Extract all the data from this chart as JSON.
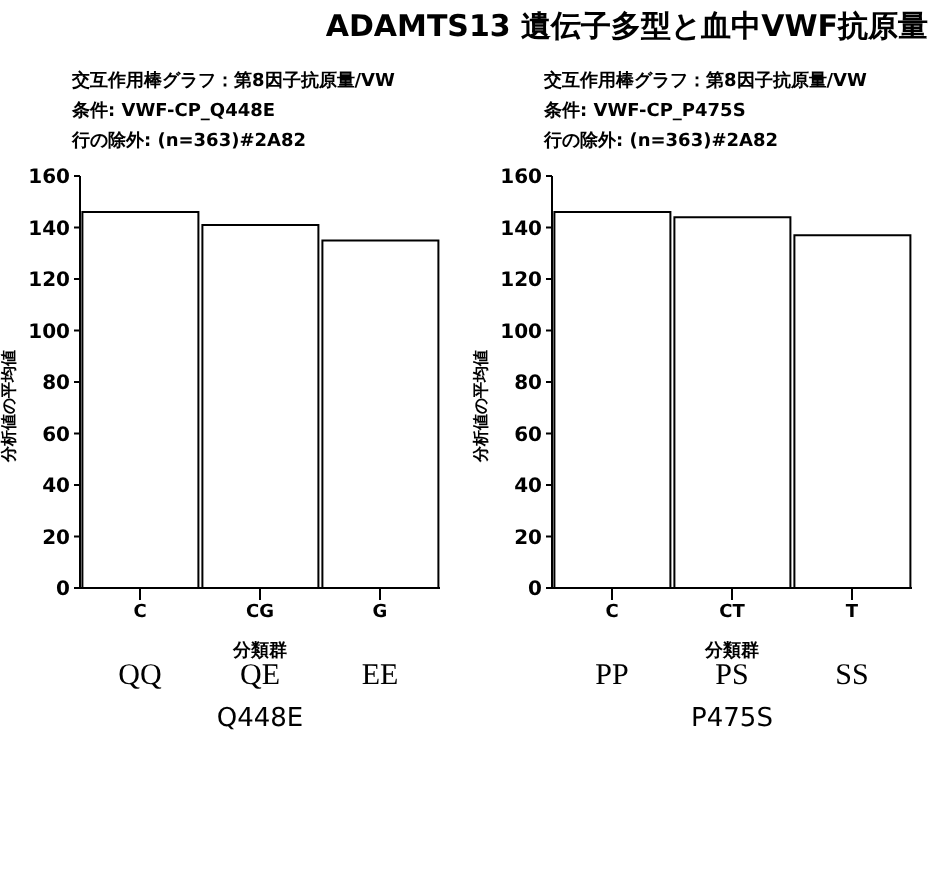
{
  "chart_data": [
    {
      "type": "bar",
      "title": "ADAMTS13 遺伝子多型と血中VWF抗原量",
      "subtitle": "交互作用棒グラフ：第8因子抗原量/VW\n条件: VWF-CP_Q448E\n行の除外: (n=363)#2A82",
      "xlabel": "分類群",
      "ylabel": "分析値の平均値",
      "categories": [
        "C",
        "CG",
        "G"
      ],
      "values": [
        146,
        141,
        135
      ],
      "color": "#ffffff",
      "ylim": [
        0,
        160
      ],
      "yticks": [
        0,
        20,
        40,
        60,
        80,
        100,
        120,
        140,
        160
      ],
      "grid": false,
      "legend": false,
      "annotations": [
        "QQ",
        "QE",
        "EE",
        "Q448E"
      ]
    },
    {
      "type": "bar",
      "subtitle": "交互作用棒グラフ：第8因子抗原量/VW\n条件: VWF-CP_P475S\n行の除外: (n=363)#2A82",
      "xlabel": "分類群",
      "ylabel": "分析値の平均値",
      "categories": [
        "C",
        "CT",
        "T"
      ],
      "values": [
        146,
        144,
        137
      ],
      "color": "#ffffff",
      "ylim": [
        0,
        160
      ],
      "yticks": [
        0,
        20,
        40,
        60,
        80,
        100,
        120,
        140,
        160
      ],
      "grid": false,
      "legend": false,
      "annotations": [
        "PP",
        "PS",
        "SS",
        "P475S"
      ]
    }
  ]
}
